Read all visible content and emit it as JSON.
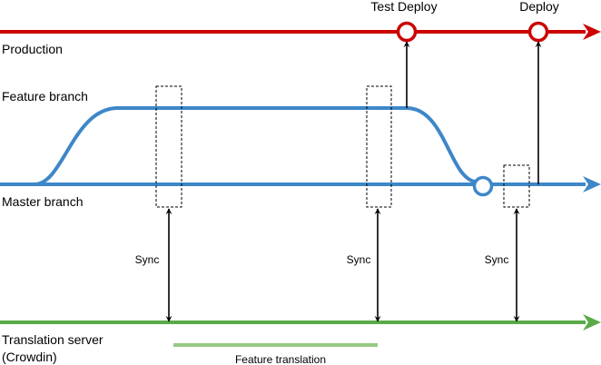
{
  "lanes": {
    "production": {
      "label": "Production",
      "color": "#cc0000"
    },
    "feature": {
      "label": "Feature branch",
      "color": "#3d87c8"
    },
    "master": {
      "label": "Master branch",
      "color": "#3d87c8"
    },
    "translation": {
      "label_line1": "Translation server",
      "label_line2": "(Crowdin)",
      "color": "#5aab47"
    }
  },
  "events": {
    "test_deploy": "Test Deploy",
    "deploy": "Deploy"
  },
  "sync_labels": [
    "Sync",
    "Sync",
    "Sync"
  ],
  "feature_translation": {
    "label": "Feature translation",
    "color": "#94c985"
  }
}
